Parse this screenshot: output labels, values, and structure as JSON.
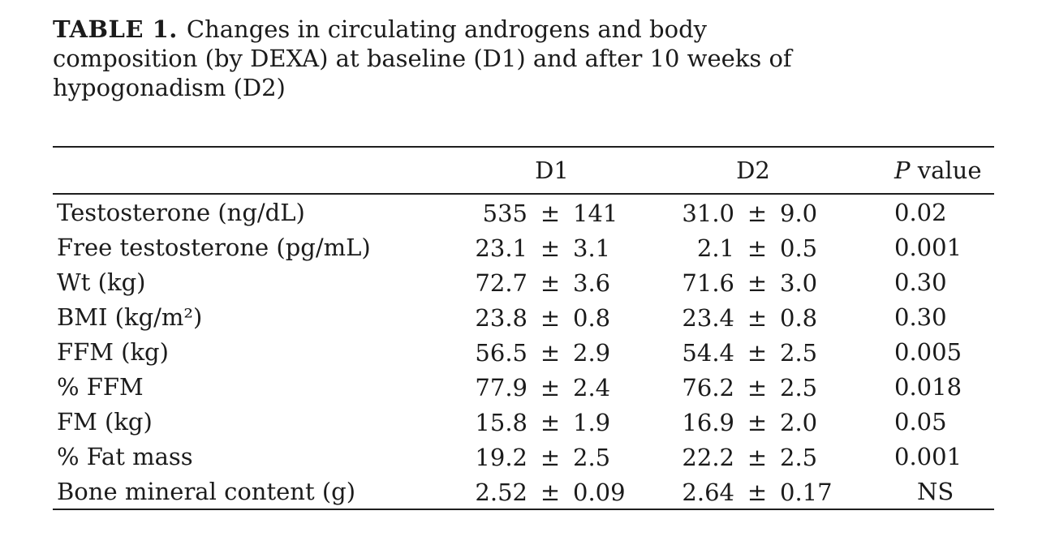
{
  "colors": {
    "background": "#ffffff",
    "text": "#1b1b1b",
    "rule": "#1e1e1e"
  },
  "table": {
    "label": "TABLE 1.",
    "caption_lines": [
      "Changes in circulating androgens and body",
      "composition (by DEXA) at baseline (D1) and after 10 weeks of",
      "hypogonadism (D2)"
    ],
    "columns": {
      "stub": "",
      "d1": "D1",
      "d2": "D2",
      "p": "P value"
    },
    "rows": [
      {
        "label": "Testosterone (ng/dL)",
        "d1": "535 ± 141",
        "d2": "31.0 ± 9.0",
        "p": "0.02"
      },
      {
        "label": "Free testosterone (pg/mL)",
        "d1": "23.1 ± 3.1",
        "d2": "2.1 ± 0.5",
        "p": "0.001"
      },
      {
        "label": "Wt (kg)",
        "d1": "72.7 ± 3.6",
        "d2": "71.6 ± 3.0",
        "p": "0.30"
      },
      {
        "label": "BMI (kg/m²)",
        "d1": "23.8 ± 0.8",
        "d2": "23.4 ± 0.8",
        "p": "0.30"
      },
      {
        "label": "FFM (kg)",
        "d1": "56.5 ± 2.9",
        "d2": "54.4 ± 2.5",
        "p": "0.005"
      },
      {
        "label": "% FFM",
        "d1": "77.9 ± 2.4",
        "d2": "76.2 ± 2.5",
        "p": "0.018"
      },
      {
        "label": "FM (kg)",
        "d1": "15.8 ± 1.9",
        "d2": "16.9 ± 2.0",
        "p": "0.05"
      },
      {
        "label": "% Fat mass",
        "d1": "19.2 ± 2.5",
        "d2": "22.2 ± 2.5",
        "p": "0.001"
      },
      {
        "label": "Bone mineral content (g)",
        "d1": "2.52 ± 0.09",
        "d2": "2.64 ± 0.17",
        "p": "NS"
      }
    ]
  }
}
